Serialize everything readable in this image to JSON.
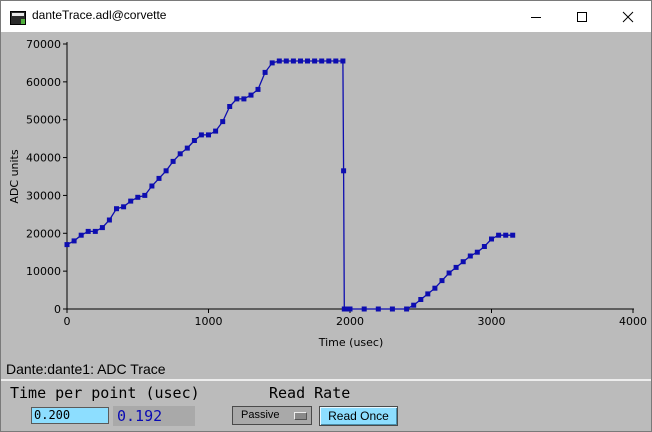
{
  "window": {
    "title": "danteTrace.adl@corvette",
    "minimize_icon": "minimize-icon",
    "maximize_icon": "maximize-icon",
    "close_icon": "close-icon"
  },
  "panel": {
    "title": "Dante:dante1: ADC Trace"
  },
  "controls": {
    "time_per_point_label": "Time per point (usec)",
    "time_per_point_value": "0.200",
    "time_per_point_readback": "0.192",
    "read_rate_label": "Read Rate",
    "read_rate_selected": "Passive",
    "read_once_label": "Read Once"
  },
  "colors": {
    "trace": "#0d0db0",
    "background": "#bbbbbb",
    "entry": "#8ddeff",
    "readback_text": "#0a0ab4"
  },
  "chart_data": {
    "type": "line",
    "title": "",
    "xlabel": "Time (usec)",
    "ylabel": "ADC units",
    "xlim": [
      0,
      4000
    ],
    "ylim": [
      0,
      70000
    ],
    "x_ticks": [
      0,
      1000,
      2000,
      3000,
      4000
    ],
    "y_ticks": [
      0,
      10000,
      20000,
      30000,
      40000,
      50000,
      60000,
      70000
    ],
    "grid": false,
    "series": [
      {
        "x": [
          0,
          50,
          100,
          150,
          200,
          250,
          300,
          350,
          400,
          450,
          500,
          550,
          600,
          650,
          700,
          750,
          800,
          850,
          900,
          950,
          1000,
          1050,
          1100,
          1150,
          1200,
          1250,
          1300,
          1350,
          1400,
          1450,
          1500,
          1550,
          1600,
          1650,
          1700,
          1750,
          1800,
          1850,
          1900,
          1950,
          1955,
          1960,
          1980,
          2000,
          2100,
          2200,
          2300,
          2400,
          2450,
          2500,
          2550,
          2600,
          2650,
          2700,
          2750,
          2800,
          2850,
          2900,
          2950,
          3000,
          3050,
          3100,
          3150
        ],
        "y": [
          17000,
          18000,
          19500,
          20500,
          20500,
          21500,
          23500,
          26500,
          27000,
          28500,
          29500,
          30000,
          32500,
          34500,
          36500,
          39000,
          41000,
          42500,
          44500,
          46000,
          46000,
          47000,
          49500,
          53500,
          55500,
          55500,
          56500,
          58000,
          62500,
          65000,
          65500,
          65500,
          65500,
          65500,
          65500,
          65500,
          65500,
          65500,
          65500,
          65500,
          36500,
          0,
          0,
          0,
          0,
          0,
          0,
          0,
          1000,
          2500,
          4000,
          5500,
          7500,
          9500,
          11000,
          12500,
          14000,
          15000,
          16500,
          18500,
          19500,
          19500,
          19500
        ]
      }
    ]
  }
}
